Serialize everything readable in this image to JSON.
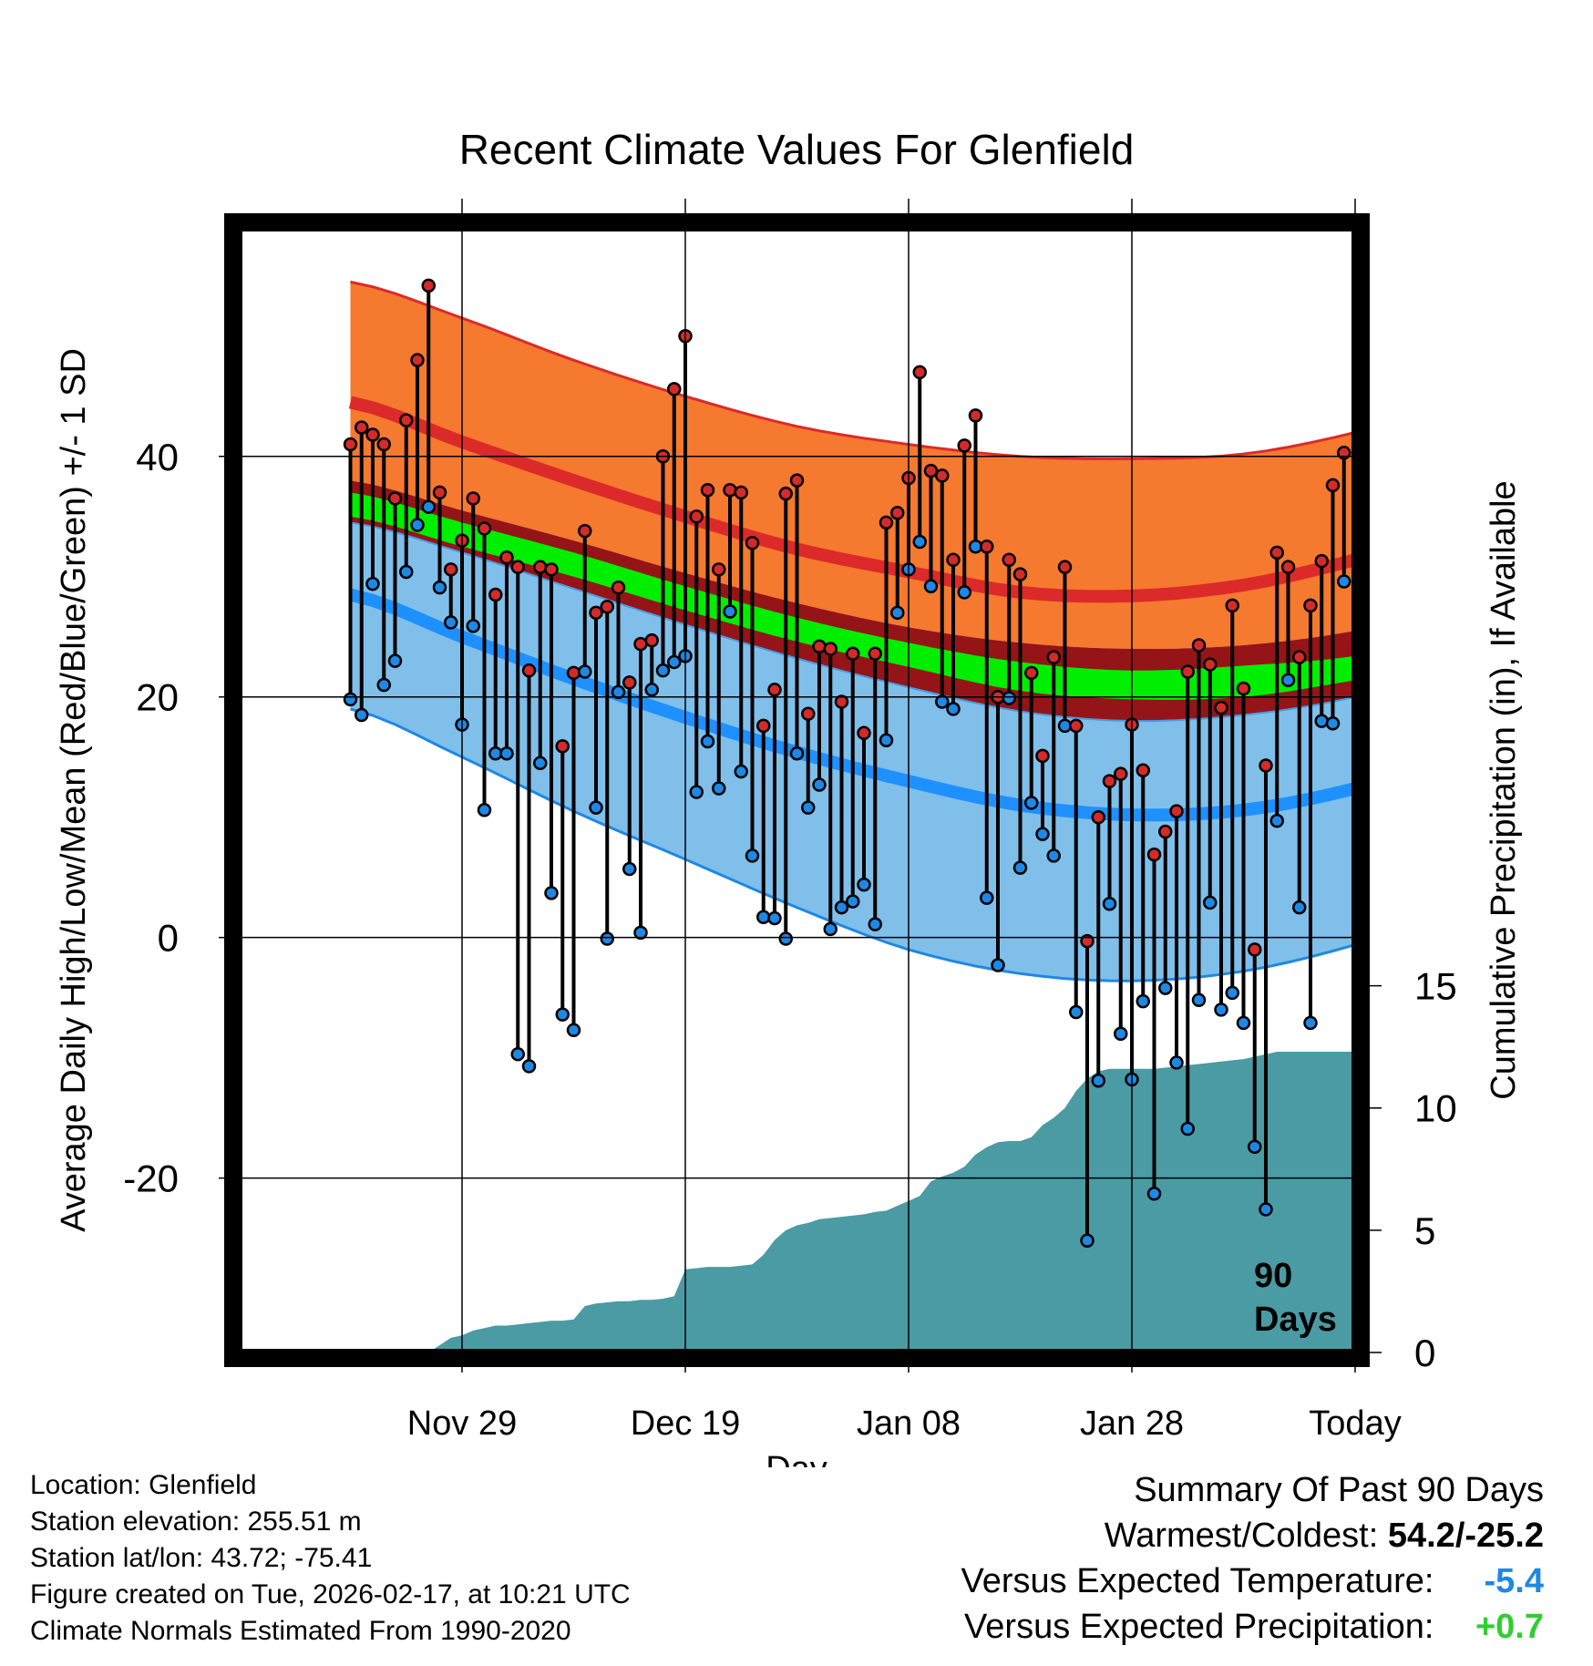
{
  "colors": {
    "record_band": "#f5792e",
    "sd_band_high": "#951418",
    "mean_band": "#00ee00",
    "sd_band_low": "#7fbfea",
    "normal_high_line": "#dc2a2a",
    "normal_low_line": "#1e90ff",
    "precip_fill": "#4a9ba4",
    "high_marker": "#d42a2a",
    "low_marker": "#1e88e5",
    "temp_departure": "#1e88e5",
    "precip_departure": "#33cc33"
  },
  "chart_data": {
    "type": "line",
    "title": "Recent Climate Values For Glenfield",
    "xlabel": "Day",
    "ylabel": "Average Daily High/Low/Mean (Red/Blue/Green) +/- 1 SD",
    "y2label": "Cumulative Precipitation (in), If Available",
    "xlim": [
      -10,
      90
    ],
    "ylim": [
      -34.5,
      59
    ],
    "y2lim": [
      0,
      46
    ],
    "x_ticks": [
      {
        "day": 10,
        "label": "Nov 29"
      },
      {
        "day": 30,
        "label": "Dec 19"
      },
      {
        "day": 50,
        "label": "Jan 08"
      },
      {
        "day": 70,
        "label": "Jan 28"
      },
      {
        "day": 90,
        "label": "Today"
      }
    ],
    "y_ticks": [
      -20,
      0,
      20,
      40
    ],
    "y2_ticks": [
      0,
      5,
      10,
      15
    ],
    "today_day": 90,
    "period_label": "90 Days",
    "normals": {
      "x": [
        0,
        10,
        20,
        30,
        40,
        50,
        60,
        70,
        80,
        90,
        100
      ],
      "high_plus_sd": [
        54.5,
        51.5,
        48,
        45,
        42.5,
        41,
        40,
        39.8,
        40.2,
        42,
        44.8
      ],
      "high_mean": [
        44.5,
        41.2,
        38,
        35,
        32.3,
        30.4,
        28.7,
        28.4,
        29.3,
        31.4,
        34
      ],
      "high_minus_sd": [
        38,
        35.5,
        33,
        30.3,
        27.8,
        25.8,
        24.5,
        24,
        24.3,
        25.5,
        27.7
      ],
      "avg_plus_band": [
        37,
        34.5,
        32,
        29.2,
        26.6,
        24.5,
        22.9,
        22.2,
        22.6,
        23.4,
        25.2
      ],
      "avg_minus_band": [
        35,
        32.5,
        30,
        27.2,
        24.6,
        22.5,
        20.5,
        19.8,
        20,
        21.4,
        23.2
      ],
      "low_plus_sd": [
        34.5,
        32,
        29,
        26,
        23.2,
        20.8,
        18.8,
        18,
        18.5,
        20,
        22.8
      ],
      "low_mean": [
        28.5,
        25,
        21.5,
        18.3,
        15.4,
        13,
        11,
        10.2,
        10.6,
        12.4,
        15.4
      ],
      "low_minus_sd": [
        19,
        15,
        10.5,
        6.5,
        2.5,
        -1,
        -3,
        -3.6,
        -2.8,
        -0.6,
        2.5
      ]
    },
    "series": [
      {
        "name": "Daily High",
        "values": [
          41,
          42.4,
          41.8,
          41,
          36.5,
          43,
          48,
          54.2,
          37,
          30.6,
          33,
          36.5,
          34,
          28.5,
          31.6,
          30.8,
          22.2,
          30.8,
          30.6,
          15.9,
          22,
          33.8,
          27,
          27.5,
          29.1,
          21.2,
          24.4,
          24.7,
          40,
          45.6,
          50,
          35,
          37.2,
          30.6,
          37.2,
          37,
          32.8,
          17.6,
          20.6,
          36.9,
          38,
          18.6,
          24.2,
          24,
          19.6,
          23.6,
          17,
          23.6,
          34.5,
          35.3,
          38.2,
          47,
          38.8,
          38.4,
          31.4,
          40.9,
          43.4,
          32.5,
          20,
          31.4,
          30.2,
          22,
          15.1,
          23.3,
          30.8,
          17.6,
          -0.3,
          10,
          13,
          13.6,
          17.7,
          13.9,
          6.9,
          8.8,
          10.5,
          22.1,
          24.3,
          22.7,
          19.1,
          27.6,
          20.7,
          -1,
          14.3,
          32,
          30.8,
          23.3,
          27.6,
          31.3,
          37.6,
          40.3
        ]
      },
      {
        "name": "Daily Low",
        "values": [
          19.8,
          18.5,
          29.4,
          21,
          23,
          30.4,
          34.3,
          35.8,
          29.1,
          26.2,
          17.7,
          25.9,
          10.6,
          15.3,
          15.3,
          -9.7,
          -10.7,
          14.5,
          3.7,
          -6.4,
          -7.7,
          22.1,
          10.8,
          -0.1,
          20.4,
          5.7,
          0.4,
          20.6,
          22.2,
          22.9,
          23.4,
          12.1,
          16.3,
          12.4,
          27.1,
          13.8,
          6.8,
          1.7,
          1.6,
          -0.1,
          15.3,
          10.8,
          12.7,
          0.7,
          2.5,
          3,
          4.4,
          1.1,
          16.4,
          27,
          30.6,
          32.9,
          29.2,
          19.6,
          19,
          28.7,
          32.5,
          3.3,
          -2.3,
          19.9,
          5.8,
          11.2,
          8.6,
          6.8,
          17.6,
          -6.2,
          -25.2,
          -11.9,
          2.8,
          -8,
          -11.8,
          -5.3,
          -21.3,
          -4.2,
          -10.4,
          -15.9,
          -5.2,
          2.9,
          -6,
          -4.6,
          -7.1,
          -17.4,
          -22.6,
          9.7,
          21.4,
          2.5,
          -7.1,
          18,
          17.8,
          29.6
        ]
      },
      {
        "name": "Cumulative Precipitation",
        "x": [
          7,
          8,
          9,
          10,
          11,
          12,
          13,
          14,
          15,
          16,
          17,
          18,
          19,
          20,
          21,
          22,
          23,
          24,
          25,
          26,
          27,
          28,
          29,
          30,
          31,
          32,
          33,
          34,
          35,
          36,
          37,
          38,
          39,
          40,
          41,
          42,
          43,
          44,
          45,
          46,
          47,
          48,
          49,
          50,
          51,
          52,
          53,
          54,
          55,
          56,
          57,
          58,
          59,
          60,
          61,
          62,
          63,
          64,
          65,
          66,
          67,
          68,
          69,
          70,
          71,
          72,
          73,
          74,
          75,
          76,
          77,
          78,
          79,
          80,
          81,
          82,
          83,
          84,
          85,
          86,
          87,
          88,
          89,
          90,
          100
        ],
        "values": [
          0,
          0.3,
          0.6,
          0.7,
          0.9,
          1,
          1.1,
          1.1,
          1.15,
          1.2,
          1.25,
          1.3,
          1.3,
          1.35,
          1.9,
          2,
          2.05,
          2.1,
          2.1,
          2.15,
          2.15,
          2.2,
          2.3,
          3.4,
          3.45,
          3.5,
          3.5,
          3.5,
          3.55,
          3.6,
          4,
          4.6,
          5,
          5.2,
          5.3,
          5.45,
          5.5,
          5.55,
          5.6,
          5.65,
          5.75,
          5.8,
          6,
          6.2,
          6.4,
          7,
          7.2,
          7.35,
          7.6,
          8.1,
          8.4,
          8.6,
          8.65,
          8.65,
          8.8,
          9.3,
          9.6,
          10,
          10.7,
          11.2,
          11.5,
          11.6,
          11.6,
          11.6,
          11.6,
          11.6,
          11.65,
          11.7,
          11.75,
          11.8,
          11.85,
          11.9,
          11.95,
          12,
          12.1,
          12.2,
          12.3,
          12.3,
          12.3,
          12.3,
          12.3,
          12.3,
          12.3,
          12.3,
          12.3
        ]
      }
    ]
  },
  "info": {
    "location": "Location: Glenfield",
    "elevation": "Station elevation: 255.51 m",
    "latlon": "Station lat/lon: 43.72; -75.41",
    "created": "Figure created on Tue, 2026-02-17, at 10:21 UTC",
    "normals": "Climate Normals Estimated From 1990-2020"
  },
  "summary": {
    "title": "Summary Of Past 90 Days",
    "extremes_label": "Warmest/Coldest:",
    "extremes_value": "54.2/-25.2",
    "temp_label": "Versus Expected Temperature:",
    "temp_value": "-5.4",
    "precip_label": "Versus Expected Precipitation:",
    "precip_value": "+0.7"
  }
}
